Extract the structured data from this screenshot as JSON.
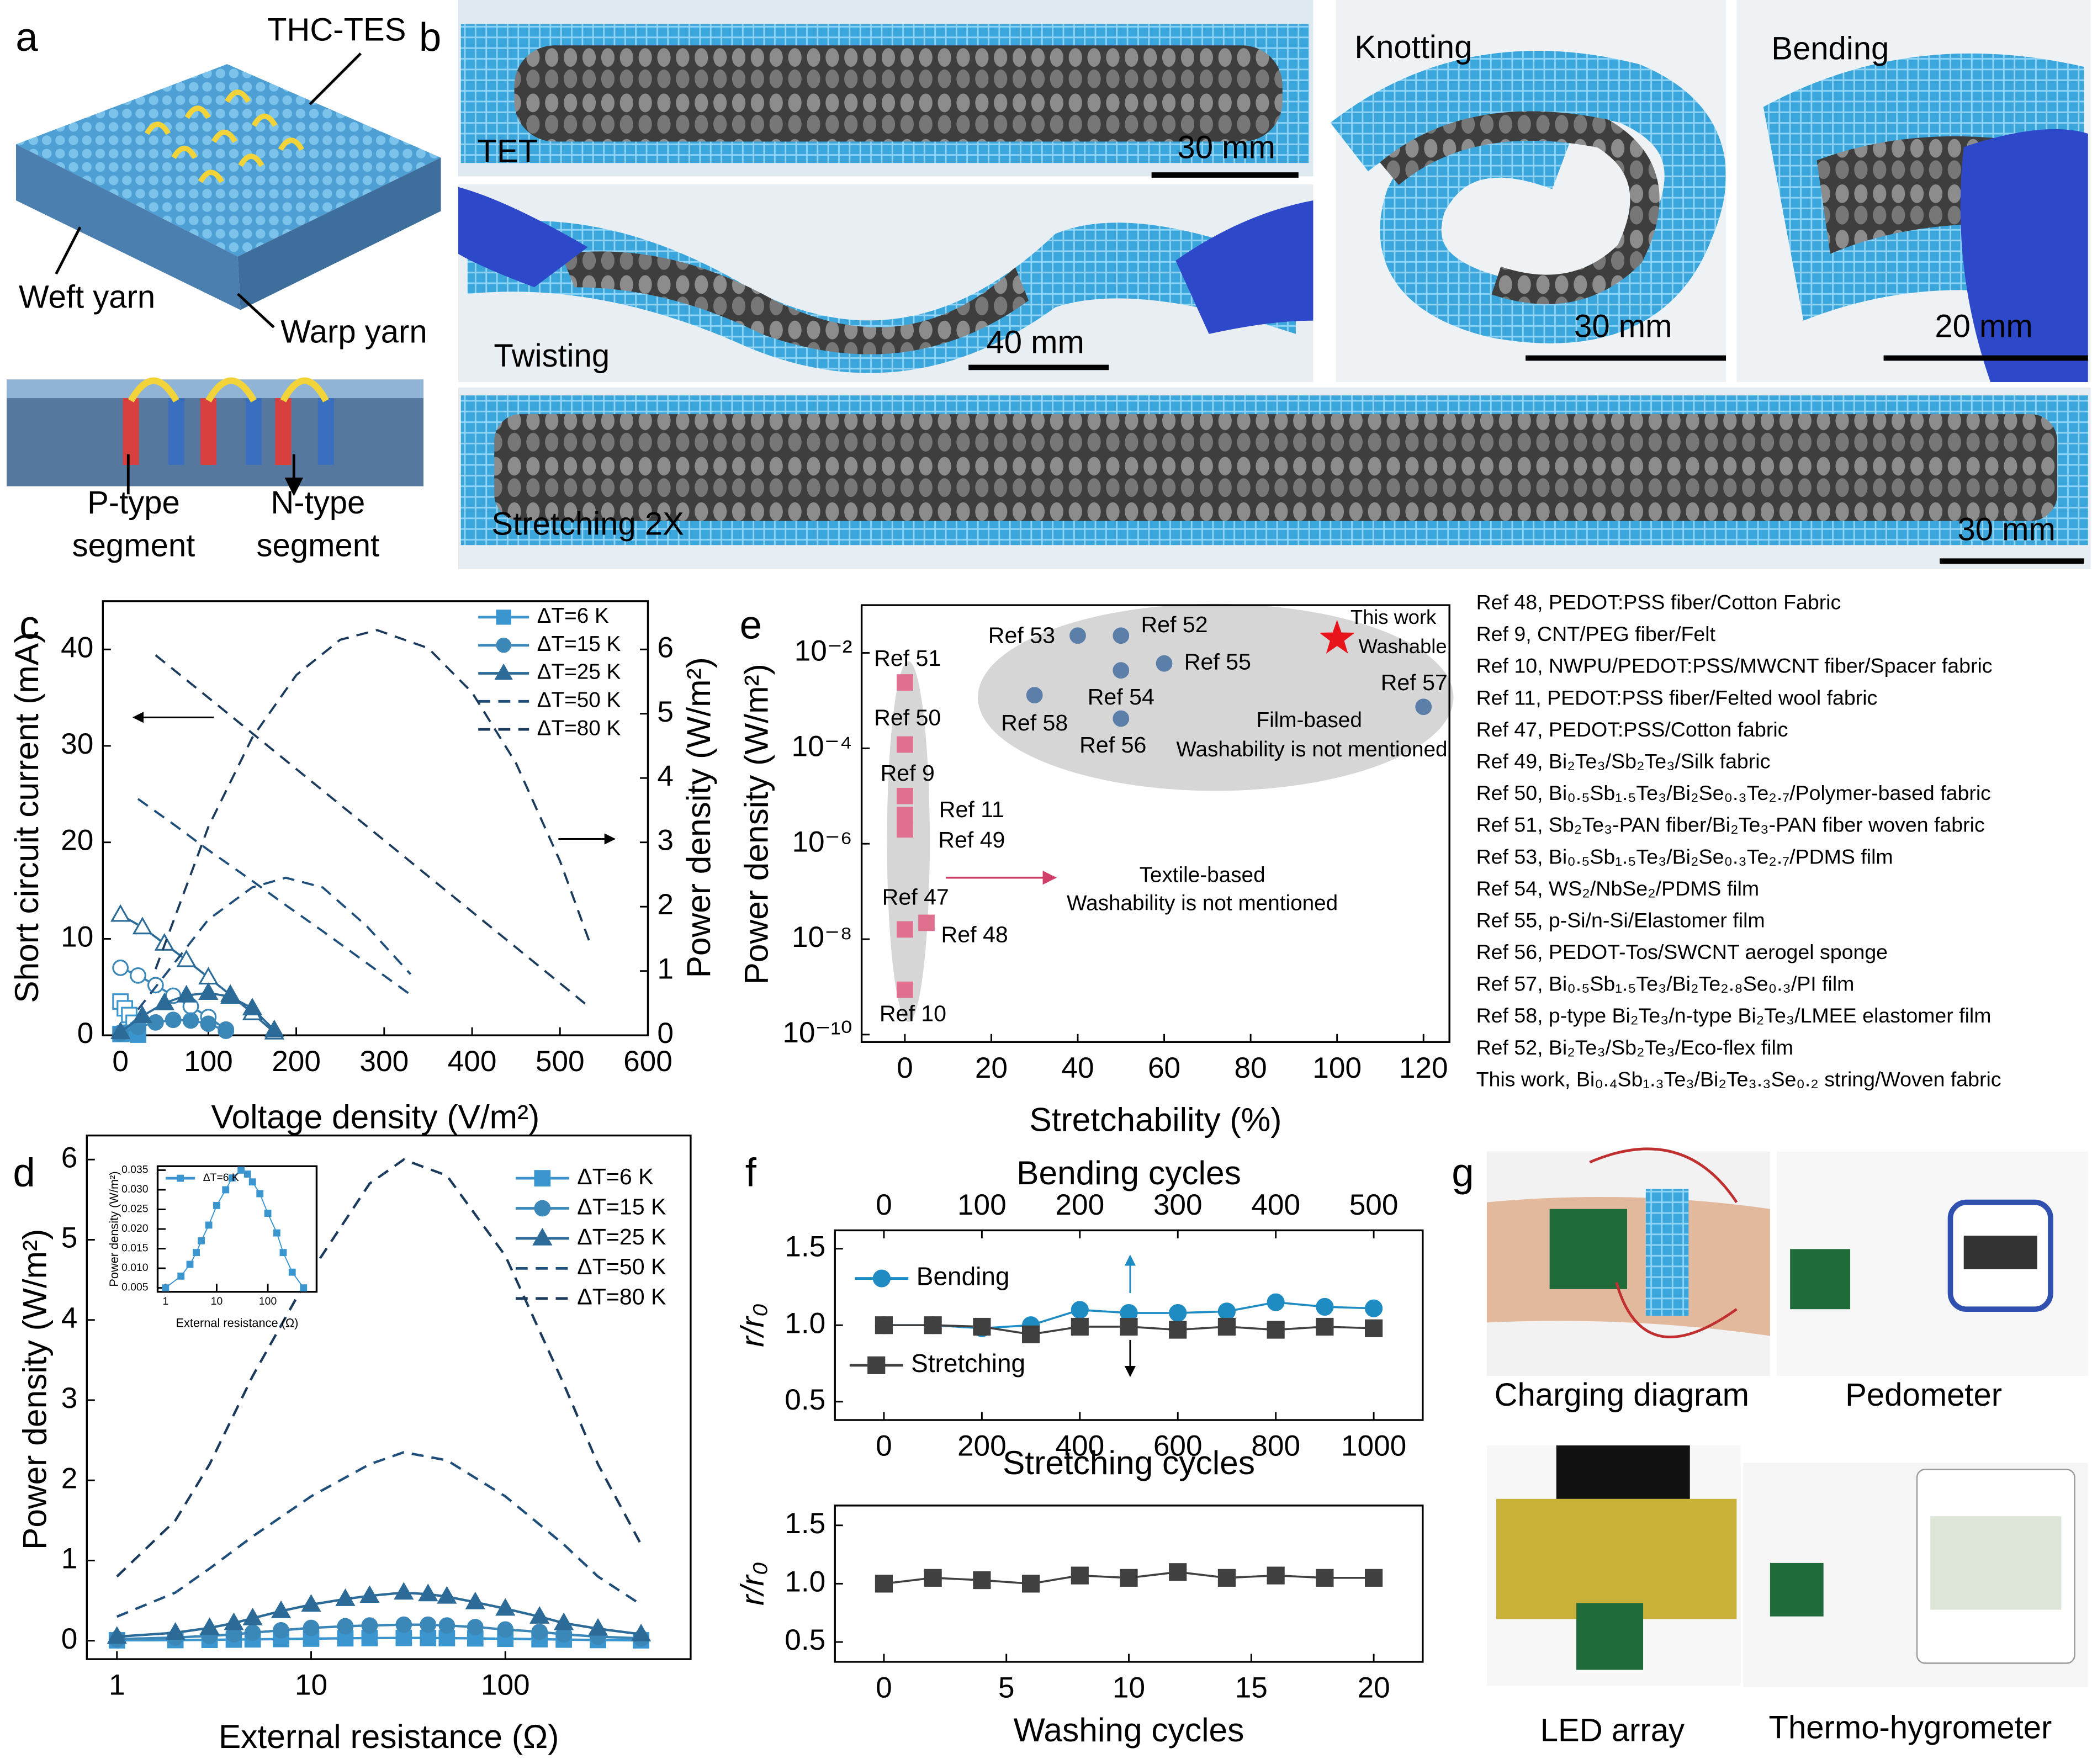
{
  "panel_labels": [
    "a",
    "b",
    "c",
    "d",
    "e",
    "f",
    "g"
  ],
  "panel_a": {
    "top_label": "THC-TES",
    "weft": "Weft yarn",
    "warp": "Warp yarn",
    "p_type": [
      "P-type",
      "segment"
    ],
    "n_type": [
      "N-type",
      "segment"
    ]
  },
  "panel_b": {
    "tet": "TET",
    "twisting": "Twisting",
    "knotting": "Knotting",
    "bending": "Bending",
    "stretching": "Stretching 2X",
    "scale_bars": [
      "30 mm",
      "40 mm",
      "30 mm",
      "20 mm",
      "30 mm"
    ]
  },
  "panel_g": {
    "captions": [
      "Charging diagram",
      "Pedometer",
      "LED array",
      "Thermo-hygrometer"
    ]
  },
  "chart_data": [
    {
      "type": "line",
      "xlabel": "Voltage density (V/m²)",
      "ylabel": "Short circuit current (mA)",
      "y2label": "Power density (W/m²)",
      "xlim": [
        -20,
        600
      ],
      "xticks": [
        0,
        100,
        200,
        300,
        400,
        500,
        600
      ],
      "ylim": [
        0,
        45
      ],
      "yticks": [
        0,
        10,
        20,
        30,
        40
      ],
      "y2lim": [
        0,
        6.75
      ],
      "y2ticks": [
        0,
        1,
        2,
        3,
        4,
        5,
        6
      ],
      "series": [
        {
          "name": "ΔT=6 K",
          "color": "#3b95cf",
          "marker": "s",
          "linestyle": "solid",
          "x": [
            0,
            5,
            10,
            15,
            20
          ],
          "current": [
            3.5,
            2.8,
            2.1,
            1.3,
            0.5
          ],
          "power": [
            0.02,
            0.03,
            0.04,
            0.03,
            0.01
          ]
        },
        {
          "name": "ΔT=15 K",
          "color": "#3a87b8",
          "marker": "o",
          "linestyle": "solid",
          "x": [
            0,
            20,
            40,
            60,
            80,
            100,
            120
          ],
          "current": [
            7,
            6.2,
            5.2,
            4.1,
            3,
            1.9,
            0.6
          ],
          "power": [
            0.03,
            0.13,
            0.2,
            0.24,
            0.23,
            0.18,
            0.07
          ]
        },
        {
          "name": "ΔT=25 K",
          "color": "#2c6b98",
          "marker": "^",
          "linestyle": "solid",
          "x": [
            0,
            25,
            50,
            75,
            100,
            125,
            150,
            175
          ],
          "current": [
            12.5,
            11.2,
            9.5,
            7.8,
            6,
            4.2,
            2.3,
            0.3
          ],
          "power": [
            0.05,
            0.3,
            0.5,
            0.62,
            0.66,
            0.6,
            0.42,
            0.08
          ]
        },
        {
          "name": "ΔT=50 K",
          "color": "#1f4e7a",
          "linestyle": "dashed",
          "x": [
            20,
            60,
            100,
            150,
            188,
            230,
            280,
            330
          ],
          "current": [
            24.5,
            21.9,
            19.2,
            16,
            13.5,
            10.8,
            7.5,
            4.2
          ],
          "power": [
            0.4,
            1.1,
            1.8,
            2.3,
            2.45,
            2.3,
            1.7,
            0.95
          ]
        },
        {
          "name": "ΔT=80 K",
          "color": "#1b3a5c",
          "linestyle": "dashed",
          "x": [
            40,
            100,
            150,
            200,
            250,
            292,
            350,
            400,
            450,
            500,
            535
          ],
          "current": [
            39.4,
            35,
            31.3,
            27.6,
            23.9,
            20.8,
            16.5,
            12.8,
            9.1,
            5.4,
            2.8
          ],
          "power": [
            1.03,
            3.24,
            4.63,
            5.6,
            6.15,
            6.3,
            6.02,
            5.33,
            4.23,
            2.71,
            1.4
          ]
        }
      ]
    },
    {
      "type": "line",
      "xlabel": "External resistance (Ω)",
      "ylabel": "Power density (W/m²)",
      "xscale": "log",
      "xlim": [
        0.7,
        900
      ],
      "xticks": [
        1,
        10,
        100
      ],
      "ylim": [
        -0.23,
        6.3
      ],
      "yticks": [
        0,
        1,
        2,
        3,
        4,
        5,
        6
      ],
      "series": [
        {
          "name": "ΔT=6 K",
          "color": "#3b95cf",
          "marker": "s",
          "linestyle": "solid",
          "x": [
            1,
            2,
            3,
            4,
            5,
            7,
            10,
            15,
            20,
            30,
            40,
            50,
            70,
            100,
            150,
            200,
            300,
            500
          ],
          "values": [
            0.005,
            0.008,
            0.011,
            0.014,
            0.017,
            0.021,
            0.026,
            0.03,
            0.033,
            0.035,
            0.034,
            0.032,
            0.029,
            0.024,
            0.019,
            0.014,
            0.009,
            0.005
          ]
        },
        {
          "name": "ΔT=15 K",
          "color": "#3a87b8",
          "marker": "o",
          "linestyle": "solid",
          "x": [
            1,
            2,
            3,
            4,
            5,
            7,
            10,
            15,
            20,
            30,
            40,
            50,
            70,
            100,
            150,
            200,
            300,
            500
          ],
          "values": [
            0.02,
            0.04,
            0.06,
            0.08,
            0.1,
            0.13,
            0.16,
            0.18,
            0.19,
            0.2,
            0.2,
            0.19,
            0.17,
            0.14,
            0.11,
            0.08,
            0.05,
            0.03
          ]
        },
        {
          "name": "ΔT=25 K",
          "color": "#2c6b98",
          "marker": "^",
          "linestyle": "solid",
          "x": [
            1,
            2,
            3,
            4,
            5,
            7,
            10,
            15,
            20,
            30,
            40,
            50,
            70,
            100,
            150,
            200,
            300,
            500
          ],
          "values": [
            0.05,
            0.1,
            0.16,
            0.22,
            0.28,
            0.37,
            0.45,
            0.52,
            0.56,
            0.6,
            0.58,
            0.55,
            0.48,
            0.4,
            0.3,
            0.22,
            0.15,
            0.08
          ]
        },
        {
          "name": "ΔT=50 K",
          "color": "#1f4e7a",
          "linestyle": "dashed",
          "x": [
            1,
            2,
            3,
            5,
            10,
            20,
            30,
            50,
            100,
            200,
            300,
            500
          ],
          "values": [
            0.3,
            0.6,
            0.9,
            1.3,
            1.8,
            2.2,
            2.35,
            2.25,
            1.8,
            1.2,
            0.8,
            0.45
          ]
        },
        {
          "name": "ΔT=80 K",
          "color": "#1b3a5c",
          "linestyle": "dashed",
          "x": [
            1,
            2,
            3,
            5,
            10,
            20,
            30,
            50,
            100,
            200,
            300,
            500
          ],
          "values": [
            0.8,
            1.5,
            2.2,
            3.3,
            4.6,
            5.7,
            6,
            5.8,
            4.8,
            3.2,
            2.2,
            1.2
          ]
        }
      ]
    },
    {
      "type": "line",
      "xlabel": "External resistance (Ω)",
      "ylabel": "Power density (W/m²)",
      "xscale": "log",
      "xlim": [
        0.7,
        900
      ],
      "xticks": [
        1,
        10,
        100
      ],
      "ylim": [
        0.004,
        0.036
      ],
      "yticks": [
        0.005,
        {
          "value": 0.01,
          "label": "0.010"
        },
        0.015,
        {
          "value": 0.02,
          "label": "0.020"
        },
        0.025,
        {
          "value": 0.03,
          "label": "0.030"
        },
        0.035
      ],
      "series": [
        {
          "name": "ΔT=6 K",
          "color": "#3b95cf",
          "marker": "s",
          "linestyle": "solid",
          "x": [
            1,
            2,
            3,
            4,
            5,
            7,
            10,
            15,
            20,
            30,
            40,
            50,
            70,
            100,
            150,
            200,
            300,
            500
          ],
          "values": [
            0.005,
            0.008,
            0.011,
            0.014,
            0.017,
            0.021,
            0.026,
            0.03,
            0.033,
            0.035,
            0.034,
            0.032,
            0.029,
            0.024,
            0.019,
            0.014,
            0.009,
            0.005
          ]
        }
      ]
    },
    {
      "type": "scatter",
      "xlabel": "Stretchability (%)",
      "ylabel": "Power density (W/m²)",
      "yscale": "log",
      "xlim": [
        -10,
        126
      ],
      "xticks": [
        0,
        20,
        40,
        60,
        80,
        100,
        120
      ],
      "ylim": [
        7e-11,
        0.1
      ],
      "yticks": [
        {
          "value": 1e-10,
          "label": "10⁻¹⁰"
        },
        {
          "value": 1e-08,
          "label": "10⁻⁸"
        },
        {
          "value": 1e-06,
          "label": "10⁻⁶"
        },
        {
          "value": 0.0001,
          "label": "10⁻⁴"
        },
        {
          "value": 0.01,
          "label": "10⁻²"
        }
      ],
      "series": [
        {
          "color": "#e0708f",
          "marker": "s",
          "x": [
            0,
            0,
            0,
            0,
            0,
            0,
            5,
            0
          ],
          "values": [
            0.0024,
            0.00012,
            1e-05,
            4e-06,
            2e-06,
            1.6e-08,
            2.2e-08,
            8.7e-10
          ],
          "labels": [
            "Ref 51",
            "Ref 50",
            "Ref 9",
            "Ref 11",
            "Ref 49",
            "Ref 47",
            "Ref 48",
            "Ref 10"
          ]
        },
        {
          "color": "#5b7fa8",
          "marker": "o",
          "x": [
            40,
            50,
            50,
            60,
            30,
            50,
            120
          ],
          "values": [
            0.023,
            0.023,
            0.0043,
            0.006,
            0.0013,
            0.00042,
            0.00074
          ],
          "labels": [
            "Ref 53",
            "Ref 52",
            "Ref 54",
            "Ref 55",
            "Ref 58",
            "Ref 56",
            "Ref 57"
          ]
        },
        {
          "color": "#e8141c",
          "marker": "*",
          "x": [
            100
          ],
          "values": [
            0.02
          ]
        }
      ],
      "annotations": [
        {
          "text": "Film-based",
          "color": "#2c5a93"
        },
        {
          "text": "Washability is not mentioned",
          "color": "#2c5a93"
        },
        {
          "text": "Textile-based",
          "color": "#d0406a"
        },
        {
          "text": "Washability is not mentioned",
          "color": "#d0406a"
        },
        {
          "text": "This work",
          "color": "#e8141c"
        },
        {
          "text": "Washable",
          "color": "#e8141c"
        }
      ],
      "references": [
        "Ref 48, PEDOT:PSS fiber/Cotton Fabric",
        "Ref 9, CNT/PEG fiber/Felt",
        "Ref 10, NWPU/PEDOT:PSS/MWCNT fiber/Spacer fabric",
        "Ref 11, PEDOT:PSS fiber/Felted wool fabric",
        "Ref 47, PEDOT:PSS/Cotton fabric",
        "Ref 49, Bi₂Te₃/Sb₂Te₃/Silk fabric",
        "Ref 50, Bi₀.₅Sb₁.₅Te₃/Bi₂Se₀.₃Te₂.₇/Polymer-based fabric",
        "Ref 51, Sb₂Te₃-PAN fiber/Bi₂Te₃-PAN fiber woven fabric",
        "Ref 53, Bi₀.₅Sb₁.₅Te₃/Bi₂Se₀.₃Te₂.₇/PDMS film",
        "Ref 54, WS₂/NbSe₂/PDMS film",
        "Ref 55, p-Si/n-Si/Elastomer film",
        "Ref 56, PEDOT-Tos/SWCNT aerogel sponge",
        "Ref 57, Bi₀.₅Sb₁.₅Te₃/Bi₂Te₂.₈Se₀.₃/PI film",
        "Ref 58, p-type Bi₂Te₃/n-type Bi₂Te₃/LMEE elastomer film",
        "Ref 52, Bi₂Te₃/Sb₂Te₃/Eco-flex film"
      ],
      "this_work": {
        "text": "This work, Bi₀.₄Sb₁.₃Te₃/Bi₂Te₃.₃Se₀.₂ string/Woven fabric",
        "color": "#e8141c"
      }
    },
    {
      "type": "line",
      "xlabel": "Stretching cycles",
      "x2label": "Bending cycles",
      "ylabel": "r/r₀",
      "xlim": [
        -100,
        1100
      ],
      "xticks": [
        0,
        200,
        400,
        600,
        800,
        1000
      ],
      "x2lim": [
        -50,
        550
      ],
      "x2ticks": [
        0,
        100,
        200,
        300,
        400,
        500
      ],
      "ylim": [
        0.38,
        1.62
      ],
      "yticks": [
        0.5,
        {
          "value": 1,
          "label": "1.0"
        },
        1.5
      ],
      "series": [
        {
          "name": "Bending",
          "color": "#1e8bc3",
          "marker": "o",
          "linestyle": "solid",
          "xaxis": "x2",
          "x": [
            0,
            50,
            100,
            150,
            200,
            250,
            300,
            350,
            400,
            450,
            500
          ],
          "values": [
            1,
            1,
            0.98,
            1,
            1.1,
            1.08,
            1.08,
            1.09,
            1.15,
            1.12,
            1.11
          ]
        },
        {
          "name": "Stretching",
          "color": "#404040",
          "marker": "s",
          "linestyle": "solid",
          "x": [
            0,
            100,
            200,
            300,
            400,
            500,
            600,
            700,
            800,
            900,
            1000
          ],
          "values": [
            1,
            1,
            0.99,
            0.94,
            0.99,
            0.99,
            0.97,
            0.99,
            0.97,
            0.99,
            0.98
          ]
        }
      ]
    },
    {
      "type": "line",
      "xlabel": "Washing cycles",
      "ylabel": "r/r₀",
      "xlim": [
        -2,
        22
      ],
      "xticks": [
        0,
        5,
        10,
        15,
        20
      ],
      "ylim": [
        0.33,
        1.67
      ],
      "yticks": [
        0.5,
        {
          "value": 1,
          "label": "1.0"
        },
        1.5
      ],
      "series": [
        {
          "color": "#404040",
          "marker": "s",
          "linestyle": "solid",
          "x": [
            0,
            2,
            4,
            6,
            8,
            10,
            12,
            14,
            16,
            18,
            20
          ],
          "values": [
            1,
            1.05,
            1.03,
            1,
            1.07,
            1.05,
            1.1,
            1.05,
            1.07,
            1.05,
            1.05
          ]
        }
      ]
    }
  ]
}
